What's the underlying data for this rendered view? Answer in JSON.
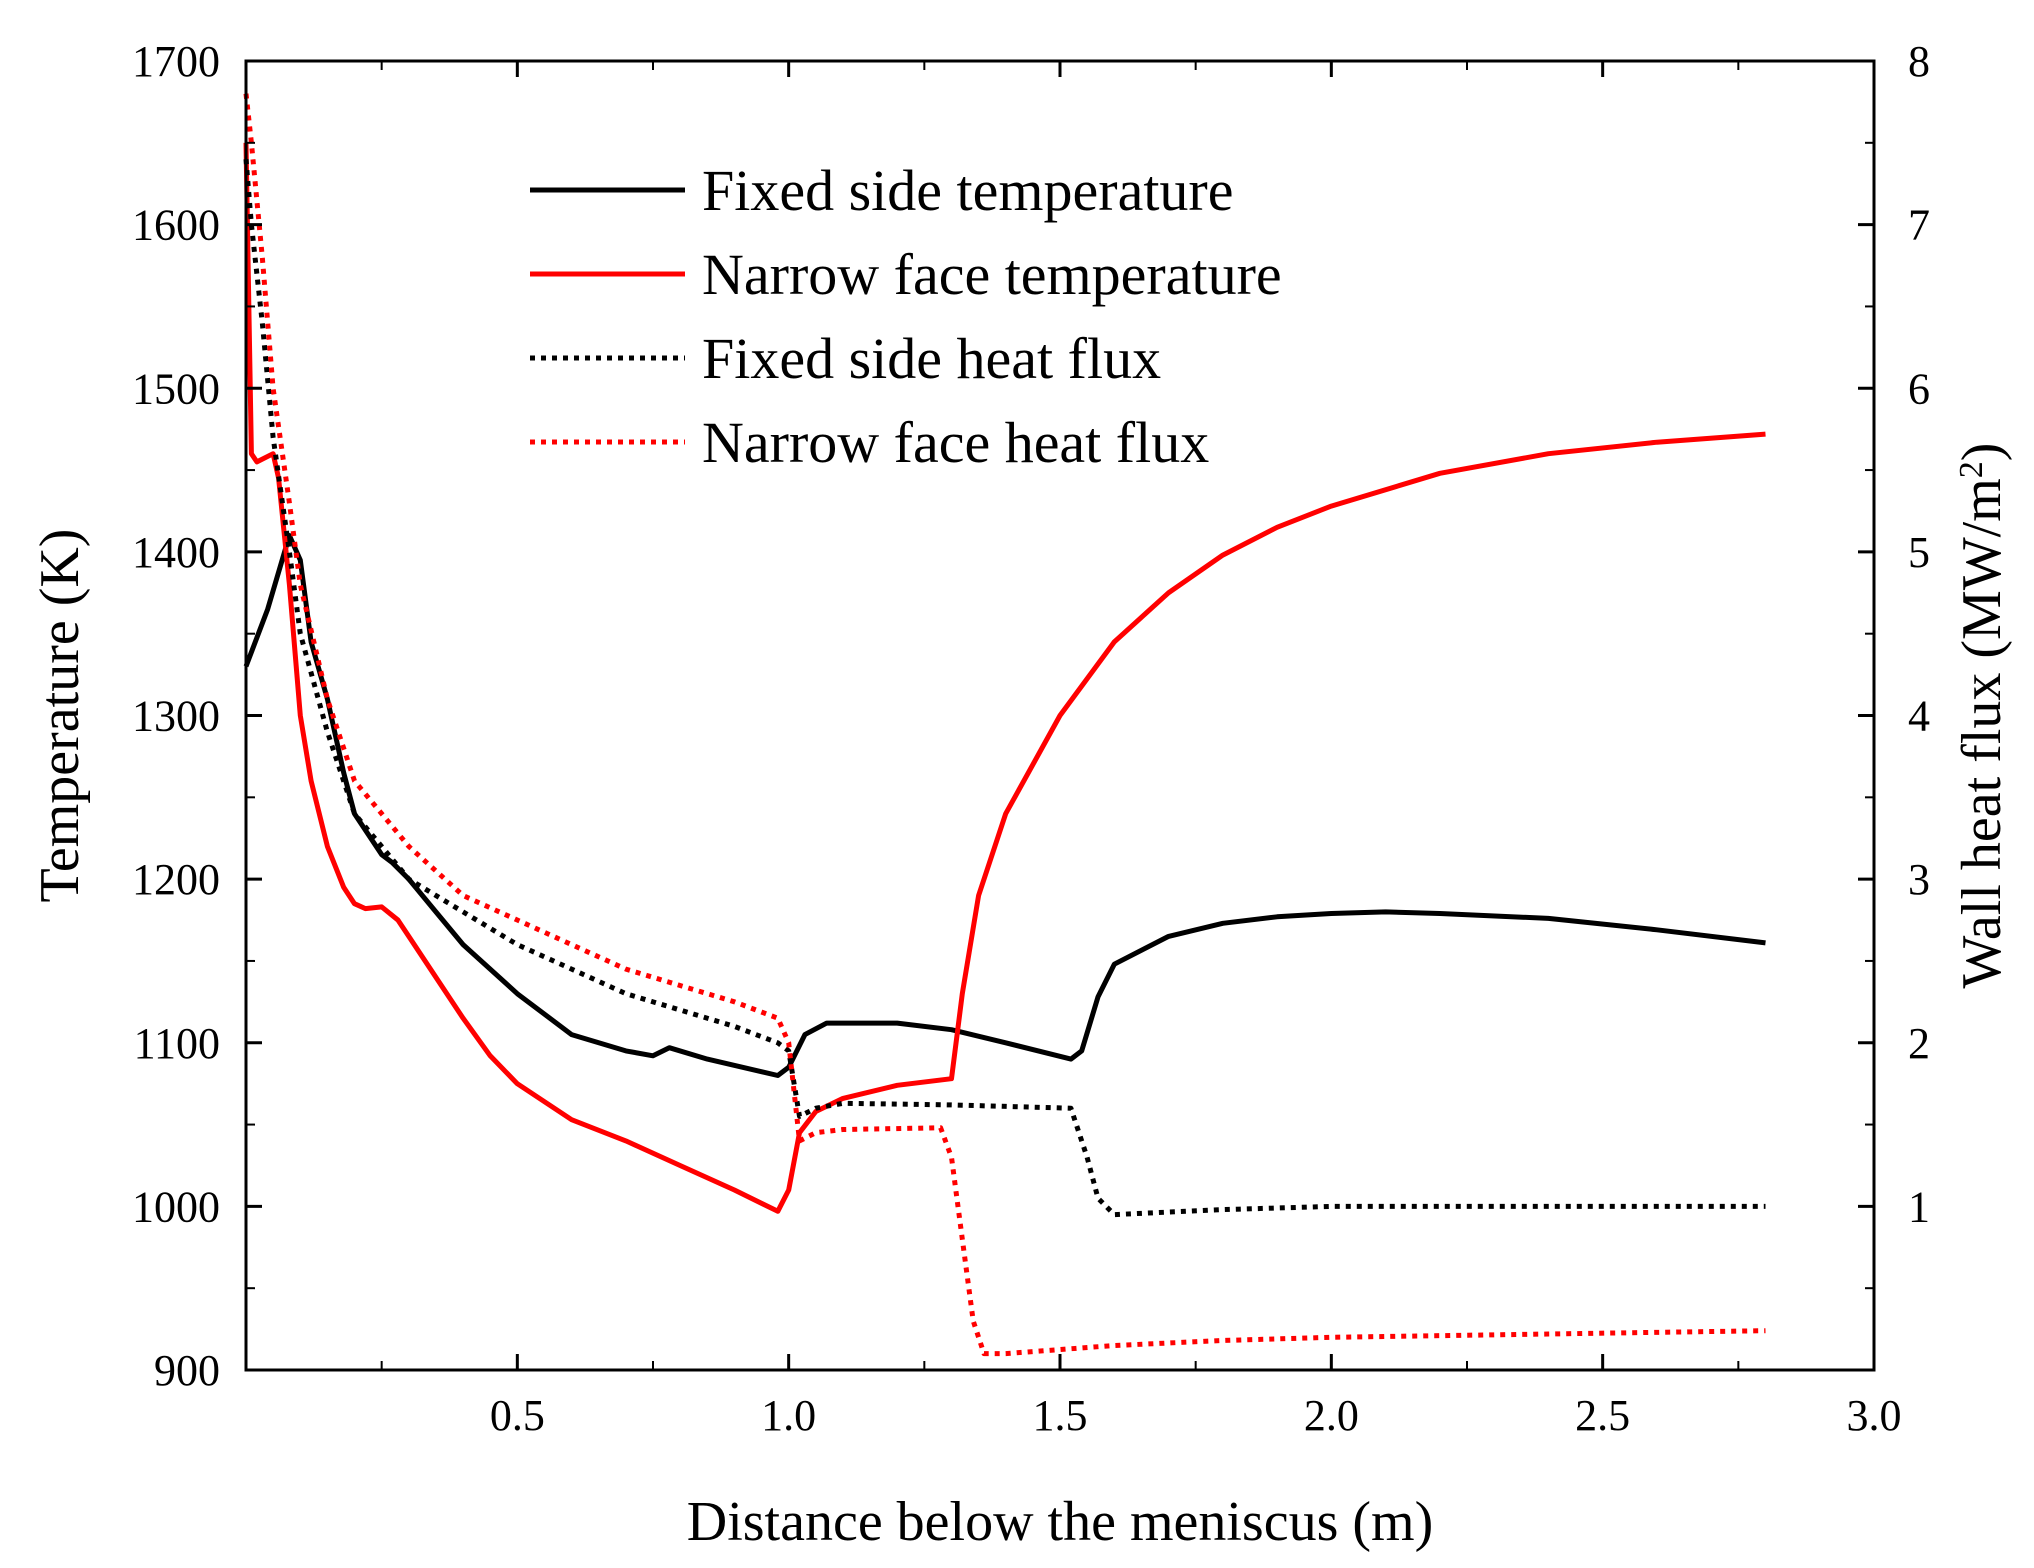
{
  "chart_data": {
    "type": "line",
    "title": "",
    "xlabel": "Distance below the meniscus (m)",
    "ylabel": "Temperature (K)",
    "y2label_main": "Wall heat flux (MW/m",
    "y2label_sup": "2",
    "y2label_end": ")",
    "xlim": [
      0,
      3.0
    ],
    "ylim": [
      900,
      1700
    ],
    "y2lim": [
      0,
      8
    ],
    "xticks": [
      0.5,
      1.0,
      1.5,
      2.0,
      2.5,
      3.0
    ],
    "xtick_labels": [
      "0.5",
      "1.0",
      "1.5",
      "2.0",
      "2.5",
      "3.0"
    ],
    "yticks": [
      900,
      1000,
      1100,
      1200,
      1300,
      1400,
      1500,
      1600,
      1700
    ],
    "ytick_labels": [
      "900",
      "1000",
      "1100",
      "1200",
      "1300",
      "1400",
      "1500",
      "1600",
      "1700"
    ],
    "y2ticks": [
      1,
      2,
      3,
      4,
      5,
      6,
      7,
      8
    ],
    "y2tick_labels": [
      "1",
      "2",
      "3",
      "4",
      "5",
      "6",
      "7",
      "8"
    ],
    "legend_position": "top-center",
    "series": [
      {
        "name": "Fixed side temperature",
        "axis": "left",
        "color": "#000000",
        "style": "solid",
        "x": [
          0,
          0.04,
          0.08,
          0.1,
          0.12,
          0.15,
          0.18,
          0.2,
          0.25,
          0.27,
          0.3,
          0.35,
          0.4,
          0.5,
          0.6,
          0.7,
          0.75,
          0.78,
          0.85,
          0.98,
          1.0,
          1.03,
          1.07,
          1.2,
          1.3,
          1.4,
          1.52,
          1.54,
          1.57,
          1.6,
          1.7,
          1.8,
          1.9,
          2.0,
          2.1,
          2.2,
          2.4,
          2.6,
          2.8
        ],
        "y": [
          1330,
          1365,
          1410,
          1395,
          1345,
          1310,
          1265,
          1240,
          1215,
          1210,
          1200,
          1180,
          1160,
          1130,
          1105,
          1095,
          1092,
          1097,
          1090,
          1080,
          1085,
          1105,
          1112,
          1112,
          1108,
          1100,
          1090,
          1095,
          1128,
          1148,
          1165,
          1173,
          1177,
          1179,
          1180,
          1179,
          1176,
          1169,
          1161
        ]
      },
      {
        "name": "Narrow face temperature",
        "axis": "left",
        "color": "#ff0000",
        "style": "solid",
        "x": [
          0,
          0.01,
          0.02,
          0.05,
          0.06,
          0.08,
          0.1,
          0.12,
          0.15,
          0.18,
          0.2,
          0.22,
          0.25,
          0.28,
          0.3,
          0.35,
          0.4,
          0.45,
          0.5,
          0.6,
          0.7,
          0.8,
          0.9,
          0.98,
          1.0,
          1.02,
          1.05,
          1.1,
          1.2,
          1.3,
          1.32,
          1.35,
          1.4,
          1.5,
          1.6,
          1.7,
          1.8,
          1.9,
          2.0,
          2.2,
          2.4,
          2.6,
          2.8
        ],
        "y": [
          1650,
          1460,
          1455,
          1460,
          1445,
          1380,
          1300,
          1260,
          1220,
          1195,
          1185,
          1182,
          1183,
          1175,
          1165,
          1140,
          1115,
          1092,
          1075,
          1053,
          1040,
          1025,
          1010,
          997,
          1010,
          1045,
          1058,
          1066,
          1074,
          1078,
          1130,
          1190,
          1240,
          1300,
          1345,
          1375,
          1398,
          1415,
          1428,
          1448,
          1460,
          1467,
          1472
        ]
      },
      {
        "name": "Fixed side heat flux",
        "axis": "right",
        "color": "#000000",
        "style": "dotted",
        "x": [
          0,
          0.01,
          0.03,
          0.05,
          0.08,
          0.1,
          0.15,
          0.2,
          0.3,
          0.4,
          0.5,
          0.6,
          0.7,
          0.8,
          0.9,
          0.98,
          1.0,
          1.02,
          1.05,
          1.1,
          1.3,
          1.52,
          1.55,
          1.57,
          1.6,
          1.8,
          2.0,
          2.4,
          2.8
        ],
        "y": [
          7.4,
          7.0,
          6.4,
          5.7,
          5.0,
          4.5,
          3.9,
          3.4,
          3.0,
          2.8,
          2.6,
          2.45,
          2.3,
          2.2,
          2.1,
          2.0,
          1.95,
          1.55,
          1.6,
          1.63,
          1.62,
          1.6,
          1.3,
          1.05,
          0.95,
          0.98,
          1.0,
          1.0,
          1.0
        ]
      },
      {
        "name": "Narrow face heat flux",
        "axis": "right",
        "color": "#ff0000",
        "style": "dotted",
        "x": [
          0,
          0.01,
          0.03,
          0.05,
          0.08,
          0.1,
          0.15,
          0.2,
          0.3,
          0.4,
          0.5,
          0.6,
          0.7,
          0.8,
          0.9,
          0.98,
          1.0,
          1.02,
          1.05,
          1.1,
          1.28,
          1.3,
          1.32,
          1.34,
          1.36,
          1.4,
          1.6,
          1.8,
          2.0,
          2.4,
          2.8
        ],
        "y": [
          7.8,
          7.5,
          6.8,
          6.0,
          5.3,
          4.8,
          4.1,
          3.6,
          3.2,
          2.9,
          2.75,
          2.6,
          2.45,
          2.35,
          2.25,
          2.15,
          2.0,
          1.4,
          1.45,
          1.47,
          1.48,
          1.3,
          0.8,
          0.3,
          0.1,
          0.1,
          0.15,
          0.18,
          0.2,
          0.22,
          0.24
        ]
      }
    ]
  }
}
